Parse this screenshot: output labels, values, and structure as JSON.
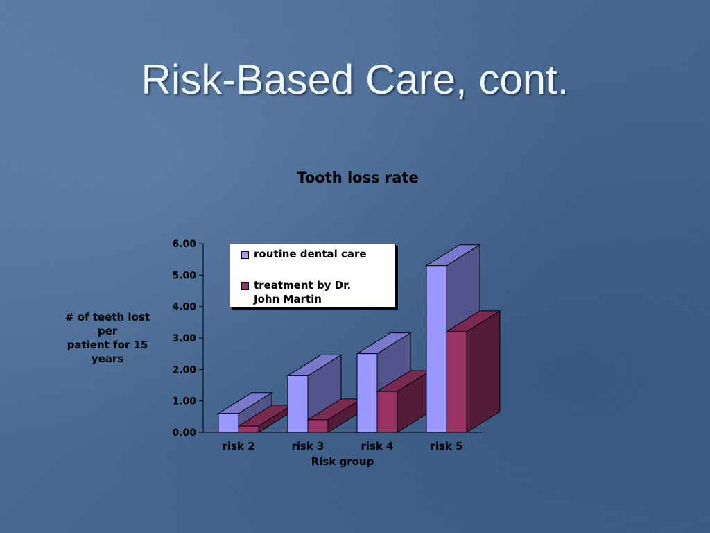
{
  "slide": {
    "title": "Risk-Based Care, cont."
  },
  "chart_data": {
    "type": "bar",
    "title": "Tooth loss rate",
    "xlabel": "Risk group",
    "ylabel": "# of teeth lost per patient for 15 years",
    "ylabel_lines": [
      "# of teeth lost",
      "per",
      "patient for 15",
      "years"
    ],
    "categories": [
      "risk 2",
      "risk 3",
      "risk 4",
      "risk 5"
    ],
    "ylim": [
      0,
      6
    ],
    "yticks": [
      "0.00",
      "1.00",
      "2.00",
      "3.00",
      "4.00",
      "5.00",
      "6.00"
    ],
    "legend_position": "top-left",
    "three_d": true,
    "series": [
      {
        "name": "routine dental care",
        "values": [
          0.6,
          1.8,
          2.5,
          5.3
        ],
        "color": "#9999ff"
      },
      {
        "name": "treatment by Dr. John Martin",
        "values": [
          0.2,
          0.4,
          1.3,
          3.2
        ],
        "color": "#993366"
      }
    ],
    "legend": {
      "item1": "routine dental care",
      "item2_line1": "treatment by Dr.",
      "item2_line2": "John Martin"
    }
  }
}
